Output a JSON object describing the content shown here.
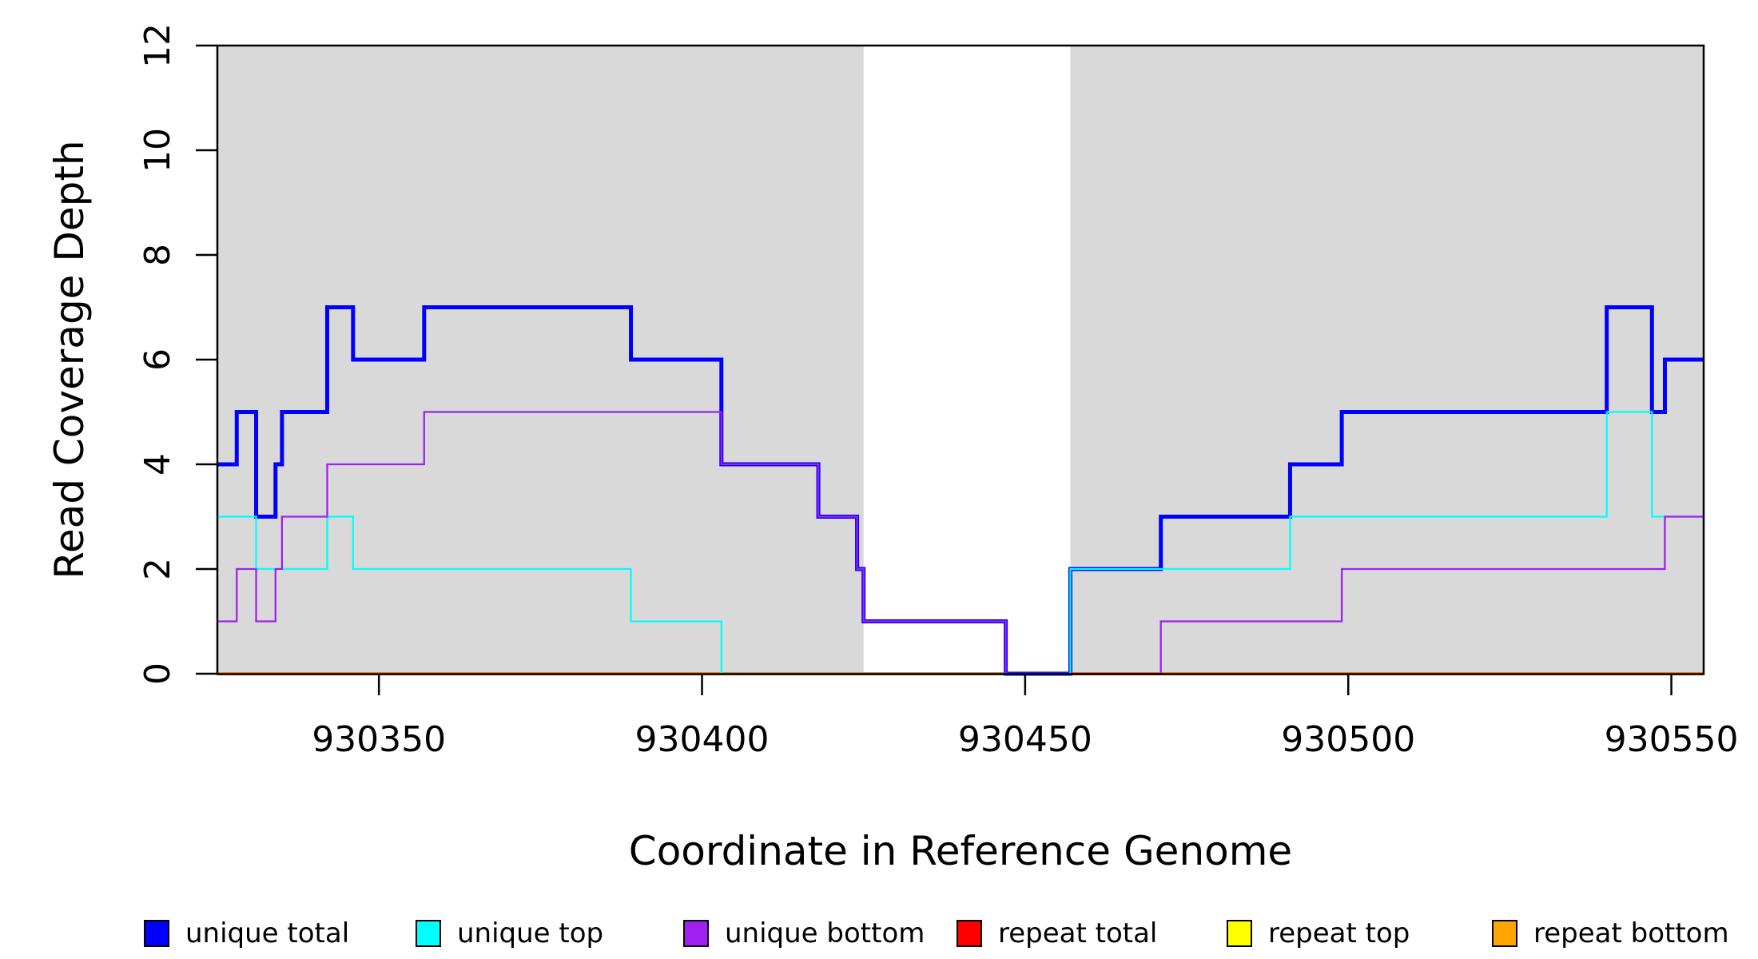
{
  "chart_data": {
    "type": "line",
    "subtype": "step-coverage",
    "title": "",
    "xlabel": "Coordinate in Reference Genome",
    "ylabel": "Read Coverage Depth",
    "x_start": 930325,
    "x_end": 930555,
    "ylim": [
      0,
      12
    ],
    "y_ticks": [
      0,
      2,
      4,
      6,
      8,
      10,
      12
    ],
    "x_ticks": [
      930350,
      930400,
      930450,
      930500,
      930550
    ],
    "grid": false,
    "background_color": "#ffffff",
    "highlight_color": "#D9D9D9",
    "highlight_regions": [
      {
        "from": 930325,
        "to": 930425
      },
      {
        "from": 930457,
        "to": 930555
      }
    ],
    "series": [
      {
        "name": "unique total",
        "color": "#0000FF",
        "line_width": 5,
        "runs": [
          [
            4,
            3
          ],
          [
            5,
            3
          ],
          [
            3,
            3
          ],
          [
            4,
            1
          ],
          [
            5,
            7
          ],
          [
            7,
            4
          ],
          [
            6,
            11
          ],
          [
            7,
            32
          ],
          [
            6,
            14
          ],
          [
            4,
            15
          ],
          [
            3,
            6
          ],
          [
            2,
            1
          ],
          [
            1,
            22
          ],
          [
            0,
            10
          ],
          [
            2,
            14
          ],
          [
            3,
            20
          ],
          [
            4,
            8
          ],
          [
            5,
            41
          ],
          [
            7,
            7
          ],
          [
            5,
            2
          ],
          [
            6,
            6
          ]
        ]
      },
      {
        "name": "unique top",
        "color": "#00FFFF",
        "line_width": 2.3,
        "runs": [
          [
            3,
            6
          ],
          [
            2,
            11
          ],
          [
            3,
            4
          ],
          [
            2,
            43
          ],
          [
            1,
            14
          ],
          [
            0,
            54
          ],
          [
            2,
            34
          ],
          [
            3,
            49
          ],
          [
            5,
            7
          ],
          [
            3,
            8
          ]
        ]
      },
      {
        "name": "unique bottom",
        "color": "#A020F0",
        "line_width": 2.3,
        "runs": [
          [
            1,
            3
          ],
          [
            2,
            3
          ],
          [
            1,
            3
          ],
          [
            2,
            1
          ],
          [
            3,
            7
          ],
          [
            4,
            15
          ],
          [
            5,
            46
          ],
          [
            4,
            15
          ],
          [
            3,
            6
          ],
          [
            2,
            1
          ],
          [
            1,
            22
          ],
          [
            0,
            24
          ],
          [
            1,
            28
          ],
          [
            2,
            50
          ],
          [
            3,
            6
          ]
        ]
      },
      {
        "name": "repeat total",
        "color": "#FF0000",
        "line_width": 4,
        "runs": [
          [
            0,
            230
          ]
        ]
      },
      {
        "name": "repeat top",
        "color": "#FFFF00",
        "line_width": 2.5,
        "runs": [
          [
            0,
            230
          ]
        ]
      },
      {
        "name": "repeat bottom",
        "color": "#FFA500",
        "line_width": 3.5,
        "runs": [
          [
            0,
            230
          ]
        ]
      }
    ],
    "draw_order": [
      "repeat total",
      "repeat top",
      "repeat bottom",
      "unique total",
      "unique top",
      "unique bottom"
    ],
    "legend_position": "bottom"
  },
  "legend": {
    "items": [
      {
        "label": "unique total",
        "color": "#0000FF"
      },
      {
        "label": "unique top",
        "color": "#00FFFF"
      },
      {
        "label": "unique bottom",
        "color": "#A020F0"
      },
      {
        "label": "repeat total",
        "color": "#FF0000"
      },
      {
        "label": "repeat top",
        "color": "#FFFF00"
      },
      {
        "label": "repeat bottom",
        "color": "#FFA500"
      }
    ]
  }
}
